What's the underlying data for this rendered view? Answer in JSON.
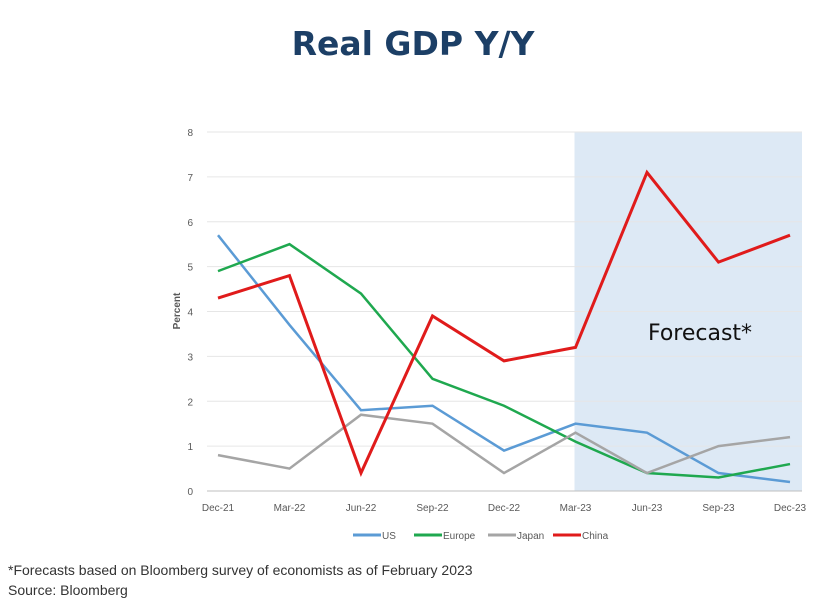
{
  "chart_data": {
    "type": "line",
    "title": "Real GDP Y/Y",
    "xlabel": "",
    "ylabel": "Percent",
    "ylim": [
      0,
      8
    ],
    "yticks": [
      "0",
      "1",
      "2",
      "3",
      "4",
      "5",
      "6",
      "7",
      "8"
    ],
    "categories": [
      "Dec-21",
      "Mar-22",
      "Jun-22",
      "Sep-22",
      "Dec-22",
      "Mar-23",
      "Jun-23",
      "Sep-23",
      "Dec-23"
    ],
    "grid": true,
    "legend_position": "bottom",
    "forecast_region": {
      "from": "Mar-23",
      "to": "Dec-23",
      "label": "Forecast*"
    },
    "series": [
      {
        "name": "US",
        "color": "#5b9bd5",
        "values": [
          5.7,
          3.7,
          1.8,
          1.9,
          0.9,
          1.5,
          1.3,
          0.4,
          0.2
        ]
      },
      {
        "name": "Europe",
        "color": "#1fa84f",
        "values": [
          4.9,
          5.5,
          4.4,
          2.5,
          1.9,
          1.1,
          0.4,
          0.3,
          0.6
        ]
      },
      {
        "name": "Japan",
        "color": "#a5a5a5",
        "values": [
          0.8,
          0.5,
          1.7,
          1.5,
          0.4,
          1.3,
          0.4,
          1.0,
          1.2
        ]
      },
      {
        "name": "China",
        "color": "#e01b1b",
        "values": [
          4.3,
          4.8,
          0.4,
          3.9,
          2.9,
          3.2,
          7.1,
          5.1,
          5.7
        ]
      }
    ]
  },
  "footnote": "*Forecasts based on Bloomberg survey of economists as of February 2023",
  "source": "Source: Bloomberg"
}
